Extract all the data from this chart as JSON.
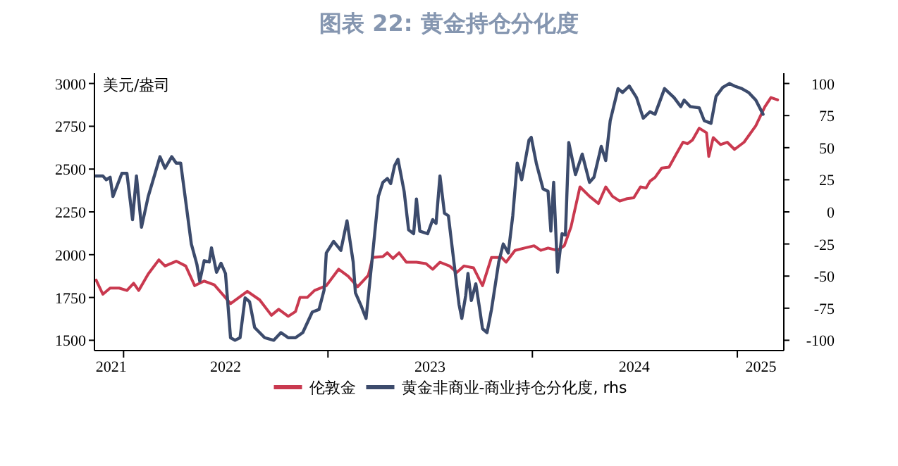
{
  "chart_data": {
    "type": "line",
    "title": "图表 22: 黄金持仓分化度",
    "ylabel": "美元/盎司",
    "xlim": [
      "2021-11-10",
      "2025-03-25"
    ],
    "xticks": [
      {
        "value": "2021-12-10",
        "label": "2021"
      },
      {
        "value": "2022-01-01",
        "label": null
      },
      {
        "value": "2022-07-02",
        "label": "2022"
      },
      {
        "value": "2023-01-01",
        "label": null
      },
      {
        "value": "2023-07-02",
        "label": "2023"
      },
      {
        "value": "2024-01-01",
        "label": null
      },
      {
        "value": "2024-07-01",
        "label": "2024"
      },
      {
        "value": "2025-01-01",
        "label": null
      },
      {
        "value": "2025-02-12",
        "label": "2025"
      }
    ],
    "ylim": [
      1440,
      3060
    ],
    "yticks": [
      1500,
      1750,
      2000,
      2250,
      2500,
      2750,
      3000
    ],
    "y2lim": [
      -108,
      108
    ],
    "y2ticks": [
      -100,
      -75,
      -50,
      -25,
      0,
      25,
      50,
      75,
      100
    ],
    "grid": false,
    "legend": "bottom",
    "line_style": "solid",
    "marker": "none",
    "series": [
      {
        "name": "伦敦金",
        "color": "#c9394f",
        "x": [
          "2021-11-13",
          "2021-11-25",
          "2021-12-08",
          "2021-12-24",
          "2022-01-07",
          "2022-01-19",
          "2022-01-28",
          "2022-02-14",
          "2022-03-05",
          "2022-03-16",
          "2022-04-05",
          "2022-04-22",
          "2022-05-08",
          "2022-05-25",
          "2022-06-12",
          "2022-06-28",
          "2022-07-11",
          "2022-08-10",
          "2022-09-01",
          "2022-09-22",
          "2022-10-05",
          "2022-10-22",
          "2022-11-04",
          "2022-11-12",
          "2022-11-25",
          "2022-12-08",
          "2022-12-29",
          "2023-01-20",
          "2023-02-06",
          "2023-02-23",
          "2023-03-14",
          "2023-03-22",
          "2023-04-09",
          "2023-04-17",
          "2023-04-27",
          "2023-05-08",
          "2023-05-21",
          "2023-06-08",
          "2023-06-25",
          "2023-07-07",
          "2023-07-20",
          "2023-08-06",
          "2023-08-19",
          "2023-09-01",
          "2023-09-18",
          "2023-10-04",
          "2023-10-20",
          "2023-11-07",
          "2023-11-15",
          "2023-12-01",
          "2023-12-18",
          "2024-01-04",
          "2024-01-16",
          "2024-01-29",
          "2024-02-15",
          "2024-02-27",
          "2024-03-10",
          "2024-03-26",
          "2024-04-12",
          "2024-04-28",
          "2024-05-11",
          "2024-05-23",
          "2024-06-05",
          "2024-06-18",
          "2024-06-30",
          "2024-07-12",
          "2024-07-22",
          "2024-07-29",
          "2024-08-07",
          "2024-08-19",
          "2024-09-01",
          "2024-09-14",
          "2024-09-26",
          "2024-10-04",
          "2024-10-13",
          "2024-10-25",
          "2024-11-07",
          "2024-11-11",
          "2024-11-19",
          "2024-12-02",
          "2024-12-14",
          "2024-12-27",
          "2025-01-13",
          "2025-02-03",
          "2025-02-19",
          "2025-03-02",
          "2025-03-14"
        ],
        "values": [
          1852,
          1769,
          1805,
          1805,
          1791,
          1833,
          1791,
          1887,
          1970,
          1934,
          1962,
          1934,
          1819,
          1846,
          1824,
          1764,
          1714,
          1786,
          1736,
          1646,
          1681,
          1640,
          1668,
          1750,
          1750,
          1791,
          1819,
          1915,
          1874,
          1813,
          1879,
          1984,
          1989,
          2011,
          1978,
          2011,
          1956,
          1956,
          1948,
          1915,
          1956,
          1934,
          1896,
          1934,
          1923,
          1819,
          1984,
          1984,
          1956,
          2025,
          2039,
          2052,
          2025,
          2039,
          2025,
          2052,
          2162,
          2396,
          2341,
          2299,
          2396,
          2341,
          2313,
          2327,
          2332,
          2396,
          2390,
          2429,
          2451,
          2506,
          2511,
          2588,
          2657,
          2648,
          2670,
          2739,
          2712,
          2574,
          2684,
          2643,
          2657,
          2615,
          2657,
          2753,
          2863,
          2918,
          2904
        ]
      },
      {
        "name": "黄金非商业-商业持仓分化度, rhs",
        "color": "#3c4b6c",
        "axis": "y2",
        "x": [
          "2021-11-12",
          "2021-11-25",
          "2021-12-01",
          "2021-12-08",
          "2021-12-13",
          "2021-12-29",
          "2022-01-07",
          "2022-01-17",
          "2022-01-24",
          "2022-02-02",
          "2022-02-14",
          "2022-03-01",
          "2022-03-07",
          "2022-03-16",
          "2022-03-28",
          "2022-04-05",
          "2022-04-13",
          "2022-05-02",
          "2022-05-12",
          "2022-05-17",
          "2022-05-25",
          "2022-06-03",
          "2022-06-07",
          "2022-06-16",
          "2022-06-24",
          "2022-07-02",
          "2022-07-11",
          "2022-07-19",
          "2022-07-28",
          "2022-08-06",
          "2022-08-14",
          "2022-08-23",
          "2022-09-10",
          "2022-09-26",
          "2022-10-09",
          "2022-10-22",
          "2022-11-04",
          "2022-11-17",
          "2022-12-04",
          "2022-12-16",
          "2022-12-25",
          "2022-12-29",
          "2023-01-11",
          "2023-01-24",
          "2023-02-04",
          "2023-02-15",
          "2023-02-19",
          "2023-03-02",
          "2023-03-10",
          "2023-03-22",
          "2023-04-01",
          "2023-04-09",
          "2023-04-17",
          "2023-04-23",
          "2023-04-30",
          "2023-05-06",
          "2023-05-17",
          "2023-05-25",
          "2023-06-03",
          "2023-06-08",
          "2023-06-14",
          "2023-06-28",
          "2023-07-07",
          "2023-07-13",
          "2023-07-20",
          "2023-07-28",
          "2023-08-04",
          "2023-08-15",
          "2023-08-23",
          "2023-08-28",
          "2023-09-04",
          "2023-09-08",
          "2023-09-14",
          "2023-09-22",
          "2023-09-29",
          "2023-10-04",
          "2023-10-12",
          "2023-10-20",
          "2023-11-02",
          "2023-11-10",
          "2023-11-19",
          "2023-11-27",
          "2023-12-05",
          "2023-12-13",
          "2023-12-26",
          "2023-12-30",
          "2024-01-08",
          "2024-01-20",
          "2024-01-29",
          "2024-02-03",
          "2024-02-08",
          "2024-02-15",
          "2024-02-23",
          "2024-02-29",
          "2024-03-06",
          "2024-03-18",
          "2024-03-30",
          "2024-04-12",
          "2024-04-20",
          "2024-05-03",
          "2024-05-11",
          "2024-05-19",
          "2024-06-02",
          "2024-06-10",
          "2024-06-22",
          "2024-07-05",
          "2024-07-17",
          "2024-07-29",
          "2024-08-07",
          "2024-08-24",
          "2024-09-10",
          "2024-09-22",
          "2024-09-28",
          "2024-10-09",
          "2024-10-25",
          "2024-11-03",
          "2024-11-15",
          "2024-11-24",
          "2024-12-06",
          "2024-12-18",
          "2024-12-27",
          "2025-01-09",
          "2025-01-21",
          "2025-02-03",
          "2025-02-16"
        ],
        "values": [
          28,
          28,
          25,
          27,
          12,
          30,
          30,
          -6,
          28,
          -12,
          12,
          34,
          43,
          34,
          43,
          38,
          38,
          -25,
          -41,
          -54,
          -38,
          -39,
          -28,
          -47,
          -40,
          -48,
          -98,
          -100,
          -98,
          -67,
          -70,
          -90,
          -98,
          -100,
          -94,
          -98,
          -98,
          -94,
          -78,
          -76,
          -61,
          -32,
          -23,
          -30,
          -7,
          -39,
          -63,
          -74,
          -83,
          -32,
          12,
          23,
          26,
          22,
          36,
          41,
          16,
          -14,
          -17,
          10,
          -15,
          -17,
          -6,
          -9,
          28,
          -1,
          -3,
          -43,
          -72,
          -83,
          -65,
          -48,
          -69,
          -56,
          -76,
          -91,
          -94,
          -76,
          -39,
          -25,
          -32,
          -3,
          38,
          25,
          56,
          58,
          38,
          18,
          16,
          -15,
          23,
          -47,
          -17,
          -18,
          54,
          29,
          45,
          23,
          27,
          51,
          40,
          71,
          96,
          93,
          98,
          89,
          73,
          78,
          76,
          96,
          89,
          82,
          87,
          82,
          81,
          71,
          69,
          90,
          97,
          100,
          98,
          96,
          93,
          87,
          76
        ]
      }
    ]
  }
}
